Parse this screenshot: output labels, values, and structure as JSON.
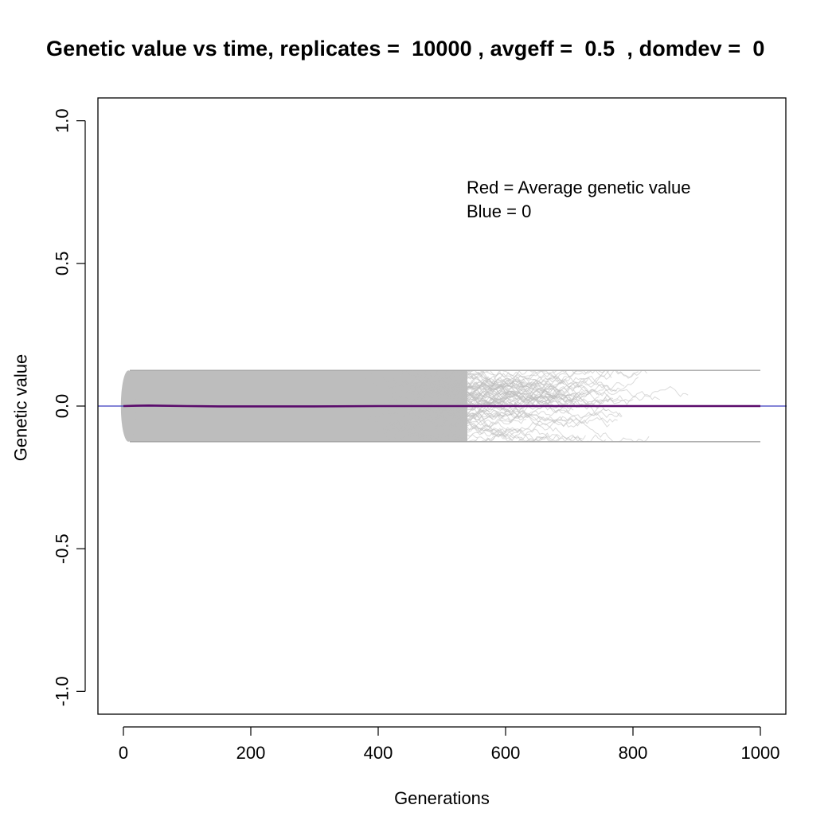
{
  "chart_data": {
    "type": "line",
    "title": "Genetic value vs time, replicates =  10000 , avgeff =  0.5  , domdev =  0",
    "xlabel": "Generations",
    "ylabel": "Genetic value",
    "xlim": [
      -40,
      1040
    ],
    "ylim": [
      -1.08,
      1.08
    ],
    "xticks": [
      0,
      200,
      400,
      600,
      800,
      1000
    ],
    "xtick_labels": [
      "0",
      "200",
      "400",
      "600",
      "800",
      "1000"
    ],
    "yticks": [
      -1.0,
      -0.5,
      0.0,
      0.5,
      1.0
    ],
    "ytick_labels": [
      "-1.0",
      "-0.5",
      "0.0",
      "0.5",
      "1.0"
    ],
    "annotations": [
      "Red = Average genetic value",
      "Blue = 0"
    ],
    "replicates": 10000,
    "envelope": {
      "x": [
        0,
        10,
        50,
        100,
        200,
        300,
        400,
        450,
        500,
        550,
        600,
        650,
        700,
        750,
        800,
        850,
        890,
        1000
      ],
      "upper": [
        0.01,
        0.125,
        0.125,
        0.125,
        0.125,
        0.125,
        0.125,
        0.125,
        0.125,
        0.125,
        0.125,
        0.12,
        0.11,
        0.09,
        0.08,
        0.06,
        0.05,
        0.125
      ],
      "lower": [
        -0.01,
        -0.125,
        -0.125,
        -0.125,
        -0.125,
        -0.125,
        -0.125,
        -0.125,
        -0.125,
        -0.125,
        -0.125,
        -0.12,
        -0.11,
        -0.1,
        -0.09,
        -0.1,
        -0.125,
        -0.125
      ]
    },
    "series": [
      {
        "name": "Red = Average genetic value",
        "color": "#5a0a6b",
        "x": [
          0,
          20,
          40,
          60,
          100,
          150,
          200,
          300,
          400,
          500,
          600,
          700,
          800,
          900,
          1000
        ],
        "y": [
          0.0,
          0.001,
          0.002,
          0.001,
          0.0,
          -0.001,
          -0.001,
          -0.001,
          0.0,
          0.0,
          0.0,
          0.0,
          0.0,
          0.0,
          0.0
        ]
      },
      {
        "name": "Blue = 0",
        "color": "#3b3bbf",
        "x": [
          -40,
          1040
        ],
        "y": [
          0,
          0
        ]
      }
    ],
    "colors": {
      "replicates": "#bdbdbd",
      "mean": "#5a0a6b",
      "zero": "#3b3bbf"
    },
    "grid": false
  }
}
